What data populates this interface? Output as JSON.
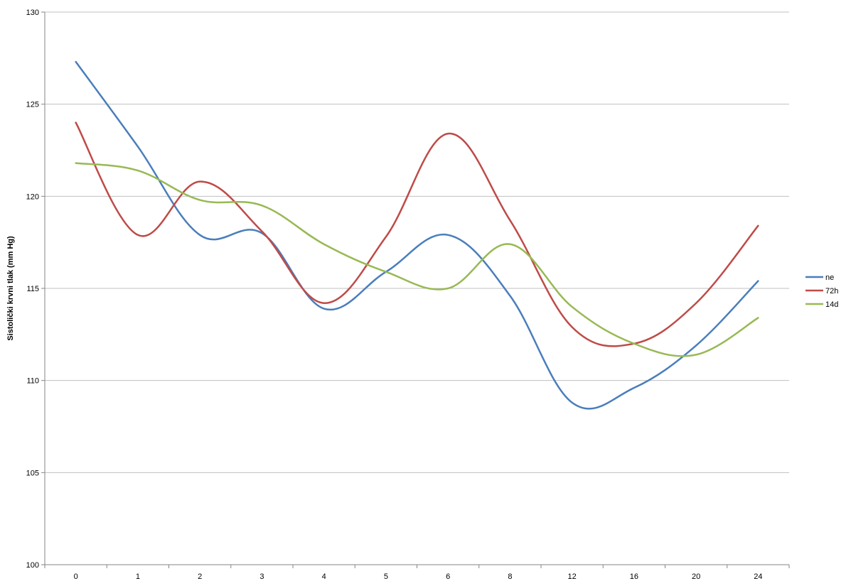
{
  "chart_data": {
    "type": "line",
    "title": "",
    "xlabel": "",
    "ylabel": "Sistolički krvni tlak (mm Hg)",
    "categories": [
      "0",
      "1",
      "2",
      "3",
      "4",
      "5",
      "6",
      "8",
      "12",
      "16",
      "20",
      "24"
    ],
    "ylim": [
      100,
      130
    ],
    "yticks": [
      "100",
      "105",
      "110",
      "115",
      "120",
      "125",
      "130"
    ],
    "grid": true,
    "legend_position": "right",
    "series": [
      {
        "name": "ne",
        "color": "#4a7ebb",
        "values": [
          127.3,
          122.7,
          117.9,
          118.0,
          113.9,
          115.9,
          117.9,
          114.6,
          108.8,
          109.6,
          111.9,
          115.4
        ]
      },
      {
        "name": "72h",
        "color": "#be4b48",
        "values": [
          124.0,
          117.9,
          120.8,
          118.1,
          114.2,
          117.8,
          123.4,
          118.7,
          112.9,
          112.0,
          114.2,
          118.4
        ]
      },
      {
        "name": "14d",
        "color": "#98b954",
        "values": [
          121.8,
          121.4,
          119.8,
          119.5,
          117.4,
          115.9,
          115.0,
          117.4,
          114.0,
          112.0,
          111.4,
          113.4
        ]
      }
    ]
  }
}
